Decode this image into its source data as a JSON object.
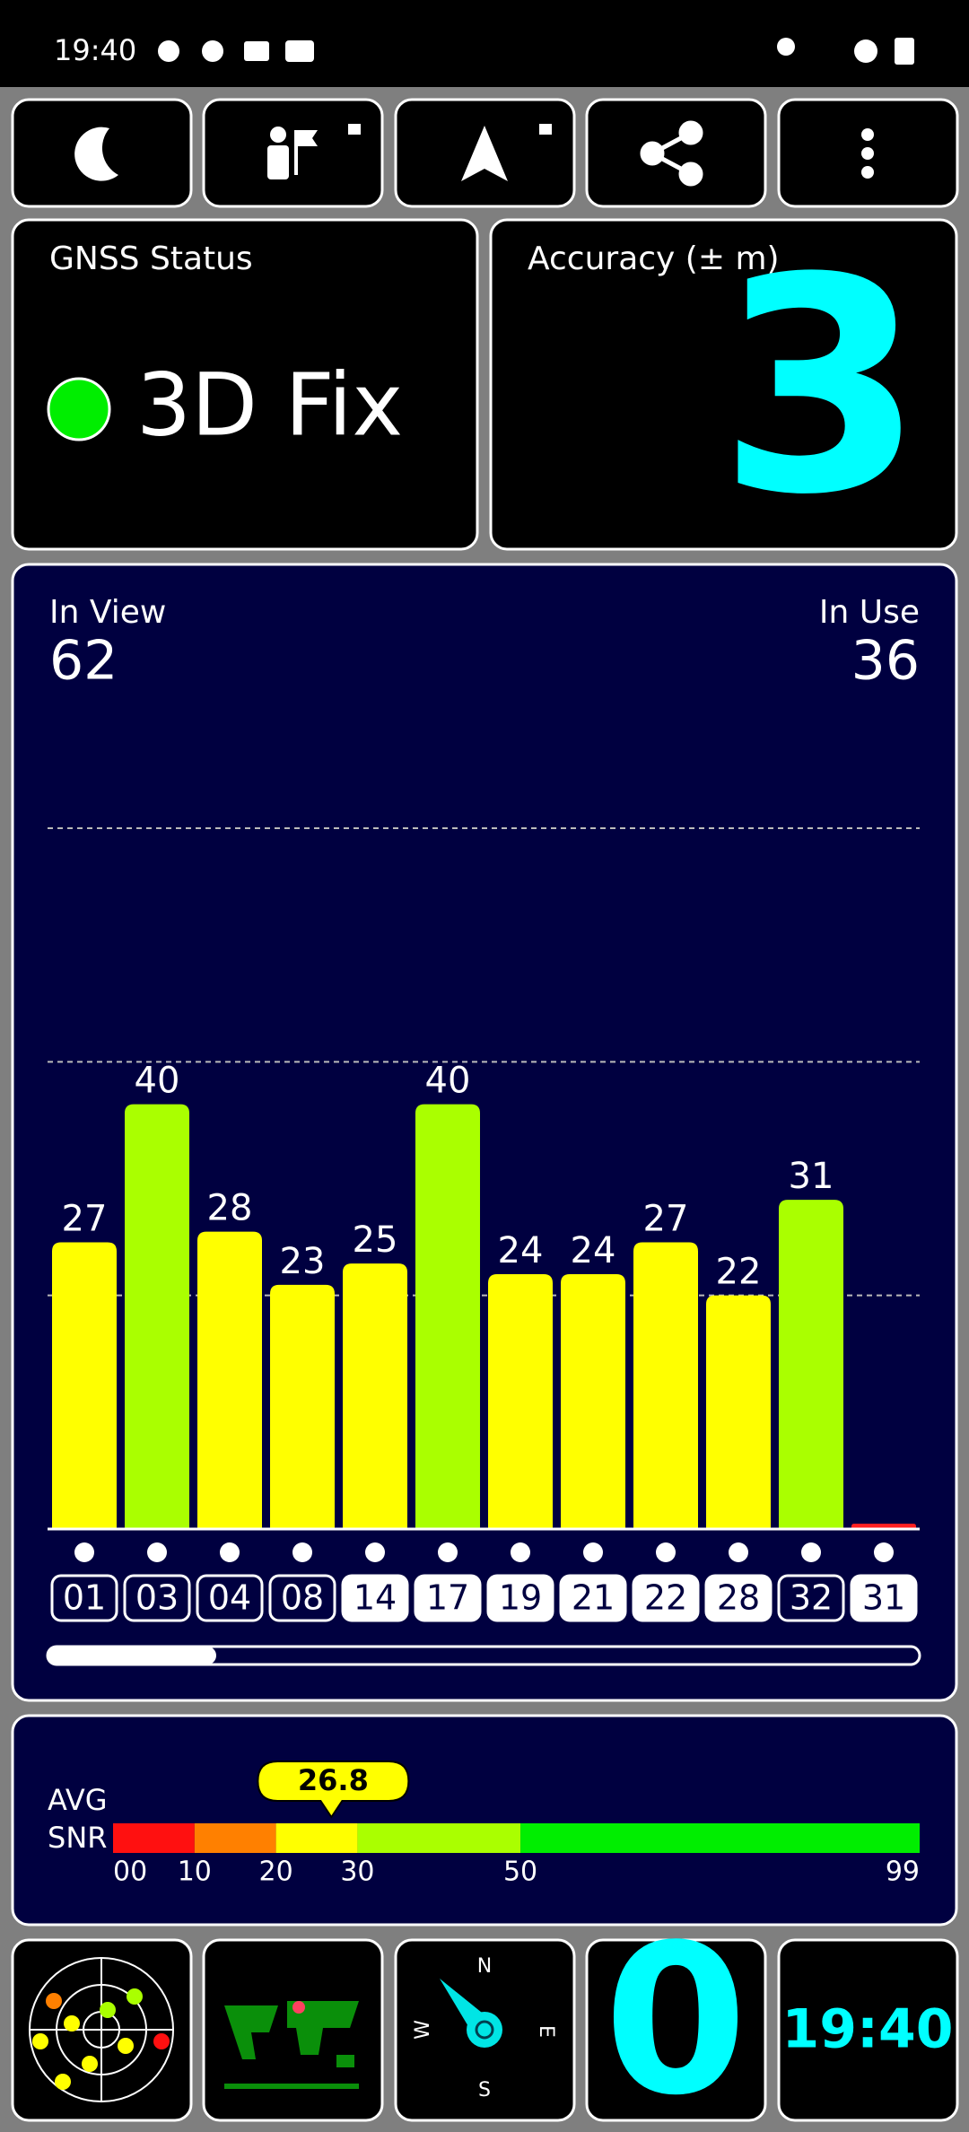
{
  "status_bar": {
    "time": "19:40"
  },
  "gnss": {
    "title": "GNSS Status",
    "status": "3D Fix"
  },
  "accuracy": {
    "title": "Accuracy (± m)",
    "value": 3
  },
  "satellites": {
    "in_view_label": "In View",
    "in_view": 62,
    "in_use_label": "In Use",
    "in_use": 36,
    "chart_data": {
      "type": "bar",
      "categories": [
        "01",
        "03",
        "04",
        "08",
        "14",
        "17",
        "19",
        "21",
        "22",
        "28",
        "32",
        "31"
      ],
      "values": [
        27,
        40,
        28,
        23,
        25,
        40,
        24,
        24,
        27,
        22,
        31,
        0.5
      ],
      "value_labels": [
        "27",
        "40",
        "28",
        "23",
        "25",
        "40",
        "24",
        "24",
        "27",
        "22",
        "31",
        null
      ],
      "colors": [
        "#ffff00",
        "#aaff00",
        "#ffff00",
        "#ffff00",
        "#ffff00",
        "#aaff00",
        "#ffff00",
        "#ffff00",
        "#ffff00",
        "#ffff00",
        "#aaff00",
        "#ff2020"
      ],
      "in_use": [
        false,
        false,
        false,
        false,
        true,
        true,
        true,
        true,
        true,
        true,
        false,
        true
      ],
      "ylim": [
        0,
        72
      ],
      "gridlines": [
        22,
        44,
        66
      ]
    }
  },
  "snr": {
    "label_1": "AVG",
    "label_2": "SNR",
    "chart_data": {
      "type": "gauge",
      "value": 26.8,
      "value_label": "26.8",
      "xlim": [
        0,
        99
      ],
      "xticks": [
        {
          "value": 0,
          "label": "00"
        },
        10,
        20,
        30,
        50,
        99
      ],
      "segments": [
        {
          "from": 0,
          "to": 10,
          "color": "#ff1010"
        },
        {
          "from": 10,
          "to": 20,
          "color": "#ff8000"
        },
        {
          "from": 20,
          "to": 30,
          "color": "#ffff00"
        },
        {
          "from": 30,
          "to": 50,
          "color": "#aaff00"
        },
        {
          "from": 50,
          "to": 99,
          "color": "#00ee00"
        }
      ]
    }
  },
  "bottom": {
    "compass": {
      "n": "N",
      "e": "E",
      "s": "S",
      "w": "W"
    },
    "counter": 0,
    "clock": "19:40"
  }
}
